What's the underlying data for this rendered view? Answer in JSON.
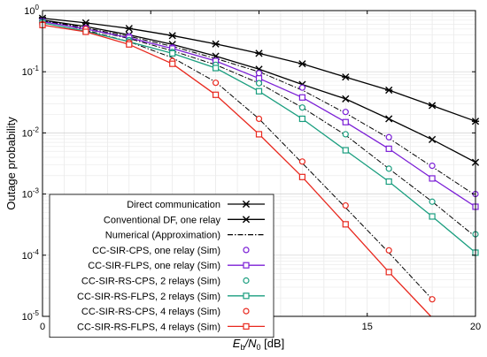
{
  "chart_data": {
    "type": "line",
    "xlabel_main": "E",
    "xlabel_sub1": "b",
    "xlabel_mid": "/N",
    "xlabel_sub2": "0",
    "xlabel_unit": " [dB]",
    "ylabel": "Outage probability",
    "xlim": [
      0,
      20
    ],
    "ylim": [
      1e-05,
      1
    ],
    "yscale": "log",
    "grid": true,
    "legend_position": "bottom-left",
    "x_ticks": [
      "0",
      "5",
      "10",
      "15",
      "20"
    ],
    "y_ticks": [
      {
        "base": "10",
        "exp": "0"
      },
      {
        "base": "10",
        "exp": "-1"
      },
      {
        "base": "10",
        "exp": "-2"
      },
      {
        "base": "10",
        "exp": "-3"
      },
      {
        "base": "10",
        "exp": "-4"
      },
      {
        "base": "10",
        "exp": "-5"
      }
    ],
    "series": [
      {
        "name": "Direct communication",
        "color": "#000000",
        "line": "solid",
        "marker": "asterisk",
        "x": [
          0,
          2,
          4,
          6,
          8,
          10,
          12,
          14,
          16,
          18,
          20
        ],
        "y": [
          0.75,
          0.63,
          0.51,
          0.39,
          0.285,
          0.2,
          0.135,
          0.082,
          0.05,
          0.028,
          0.0155
        ]
      },
      {
        "name": "Conventional DF, one relay",
        "color": "#000000",
        "line": "solid",
        "marker": "cross",
        "x": [
          0,
          2,
          4,
          6,
          8,
          10,
          12,
          14,
          16,
          18,
          20
        ],
        "y": [
          0.7,
          0.55,
          0.4,
          0.28,
          0.18,
          0.11,
          0.062,
          0.036,
          0.017,
          0.0078,
          0.0033
        ]
      },
      {
        "name": "Numerical (Approximation)",
        "color": "#000000",
        "line": "dashdot",
        "marker": "none",
        "x": [],
        "y": []
      },
      {
        "name": "CC-SIR-CPS, one relay (Sim)",
        "color": "#7B1FD6",
        "line": "none",
        "marker": "circle",
        "x": [
          0,
          2,
          4,
          6,
          8,
          10,
          12,
          14,
          16,
          18,
          20
        ],
        "y": [
          0.68,
          0.52,
          0.38,
          0.25,
          0.15,
          0.095,
          0.055,
          0.022,
          0.0085,
          0.0029,
          0.001
        ]
      },
      {
        "name": "CC-SIR-FLPS, one relay (Sim)",
        "color": "#7B1FD6",
        "line": "solid",
        "marker": "square",
        "x": [
          0,
          2,
          4,
          6,
          8,
          10,
          12,
          14,
          16,
          18,
          20
        ],
        "y": [
          0.66,
          0.5,
          0.36,
          0.24,
          0.15,
          0.078,
          0.038,
          0.015,
          0.0055,
          0.0018,
          0.00062
        ]
      },
      {
        "name": "CC-SIR-RS-CPS, 2 relays (Sim)",
        "color": "#1A9E7F",
        "line": "none",
        "marker": "circle",
        "x": [
          0,
          2,
          4,
          6,
          8,
          10,
          12,
          14,
          16,
          18,
          20
        ],
        "y": [
          0.65,
          0.48,
          0.33,
          0.21,
          0.13,
          0.065,
          0.026,
          0.0095,
          0.0026,
          0.00075,
          0.00022
        ]
      },
      {
        "name": "CC-SIR-RS-FLPS, 2 relays (Sim)",
        "color": "#1A9E7F",
        "line": "solid",
        "marker": "square",
        "x": [
          0,
          2,
          4,
          6,
          8,
          10,
          12,
          14,
          16,
          18,
          20
        ],
        "y": [
          0.63,
          0.46,
          0.31,
          0.2,
          0.115,
          0.048,
          0.017,
          0.0052,
          0.0016,
          0.00043,
          0.00011
        ]
      },
      {
        "name": "CC-SIR-RS-CPS, 4 relays (Sim)",
        "color": "#E8281E",
        "line": "none",
        "marker": "circle",
        "x": [
          0,
          2,
          4,
          6,
          8,
          10,
          12,
          14,
          16,
          18
        ],
        "y": [
          0.6,
          0.5,
          0.3,
          0.15,
          0.066,
          0.017,
          0.0034,
          0.00065,
          0.00012,
          1.9e-05
        ]
      },
      {
        "name": "CC-SIR-RS-FLPS, 4 relays (Sim)",
        "color": "#E8281E",
        "line": "solid",
        "marker": "square",
        "x": [
          0,
          2,
          4,
          6,
          8,
          10,
          12,
          14,
          16,
          18
        ],
        "y": [
          0.58,
          0.45,
          0.28,
          0.135,
          0.042,
          0.0095,
          0.0019,
          0.00032,
          5.3e-05,
          9.5e-06
        ]
      }
    ],
    "approximation_curves": [
      {
        "for_series": "CC-SIR-CPS, one relay (Sim)",
        "x": [
          0,
          2,
          4,
          6,
          8,
          10,
          12,
          14,
          16,
          18,
          20
        ],
        "y": [
          0.7,
          0.52,
          0.38,
          0.26,
          0.165,
          0.1,
          0.05,
          0.021,
          0.0082,
          0.0028,
          0.00095
        ]
      },
      {
        "for_series": "CC-SIR-RS-CPS, 2 relays (Sim)",
        "x": [
          0,
          2,
          4,
          6,
          8,
          10,
          12,
          14,
          16,
          18,
          20
        ],
        "y": [
          0.68,
          0.5,
          0.35,
          0.22,
          0.13,
          0.065,
          0.026,
          0.0092,
          0.0026,
          0.00075,
          0.0002
        ]
      },
      {
        "for_series": "CC-SIR-RS-CPS, 4 relays (Sim)",
        "x": [
          0,
          2,
          4,
          6,
          8,
          10,
          12,
          14,
          16,
          18
        ],
        "y": [
          0.7,
          0.48,
          0.31,
          0.17,
          0.068,
          0.017,
          0.0032,
          0.0006,
          0.00011,
          1.9e-05
        ]
      }
    ]
  }
}
